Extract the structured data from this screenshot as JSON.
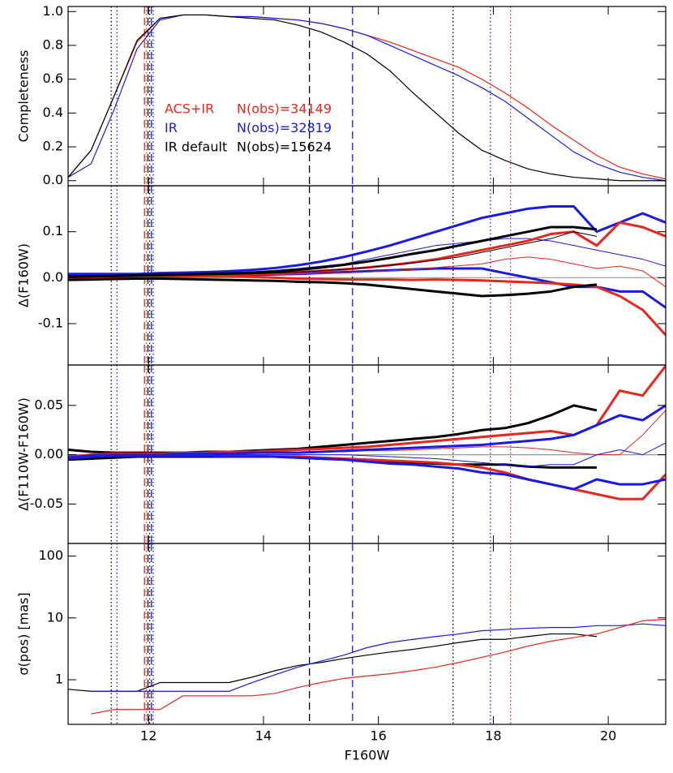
{
  "chart_data": [
    {
      "type": "line",
      "ylabel": "Completeness",
      "xlim": [
        10.6,
        21
      ],
      "xticks": [
        12,
        14,
        16,
        18,
        20
      ],
      "ylim": [
        -0.03,
        1.03
      ],
      "yticks": [
        {
          "value": 0,
          "label": "0.0"
        },
        {
          "value": 0.2,
          "label": "0.2"
        },
        {
          "value": 0.4,
          "label": "0.4"
        },
        {
          "value": 0.6,
          "label": "0.6"
        },
        {
          "value": 0.8,
          "label": "0.8"
        },
        {
          "value": 1,
          "label": "1.0"
        }
      ],
      "x": [
        10.6,
        11.0,
        11.4,
        11.8,
        12.2,
        12.6,
        13.0,
        13.4,
        13.8,
        14.2,
        14.6,
        15.0,
        15.4,
        15.8,
        16.2,
        16.6,
        17.0,
        17.4,
        17.8,
        18.2,
        18.6,
        19.0,
        19.4,
        19.8,
        20.2,
        20.6,
        21.0
      ],
      "series": [
        {
          "name": "ACS+IR",
          "note": "N(obs)=34149",
          "color": "#e8261c",
          "width": 1.2,
          "values": [
            0.02,
            0.18,
            0.5,
            0.82,
            0.96,
            0.98,
            0.98,
            0.97,
            0.97,
            0.96,
            0.95,
            0.93,
            0.9,
            0.86,
            0.82,
            0.77,
            0.72,
            0.67,
            0.6,
            0.52,
            0.43,
            0.33,
            0.24,
            0.15,
            0.08,
            0.04,
            0.01
          ]
        },
        {
          "name": "IR",
          "note": "N(obs)=32819",
          "color": "#1a1ae6",
          "width": 1.2,
          "values": [
            0.02,
            0.1,
            0.42,
            0.78,
            0.95,
            0.98,
            0.98,
            0.97,
            0.97,
            0.96,
            0.95,
            0.93,
            0.9,
            0.86,
            0.8,
            0.74,
            0.68,
            0.62,
            0.55,
            0.47,
            0.37,
            0.27,
            0.17,
            0.1,
            0.05,
            0.02,
            0.0
          ]
        },
        {
          "name": "IR default",
          "note": "N(obs)=15624",
          "color": "#000000",
          "width": 1.2,
          "values": [
            0.02,
            0.18,
            0.5,
            0.83,
            0.96,
            0.98,
            0.98,
            0.97,
            0.96,
            0.95,
            0.92,
            0.88,
            0.82,
            0.75,
            0.65,
            0.52,
            0.4,
            0.28,
            0.18,
            0.12,
            0.07,
            0.04,
            0.02,
            0.01,
            0.0,
            0.0,
            0.0
          ]
        }
      ]
    },
    {
      "type": "line",
      "ylabel": "Δ(F160W)",
      "xlim": [
        10.6,
        21
      ],
      "xticks": [
        12,
        14,
        16,
        18,
        20
      ],
      "ylim": [
        -0.19,
        0.2
      ],
      "zero_line": true,
      "yticks": [
        -0.1,
        {
          "value": 0,
          "label": "0.0"
        },
        0.1
      ],
      "x": [
        10.6,
        11.0,
        11.4,
        11.8,
        12.2,
        12.6,
        13.0,
        13.4,
        13.8,
        14.2,
        14.6,
        15.0,
        15.4,
        15.8,
        16.2,
        16.6,
        17.0,
        17.4,
        17.8,
        18.2,
        18.6,
        19.0,
        19.4,
        19.8,
        20.2,
        20.6,
        21.0
      ],
      "series": [
        {
          "color": "#1a1ae6",
          "width": 3,
          "values": [
            0.008,
            0.008,
            0.008,
            0.008,
            0.01,
            0.011,
            0.012,
            0.014,
            0.017,
            0.021,
            0.027,
            0.035,
            0.045,
            0.057,
            0.07,
            0.085,
            0.1,
            0.115,
            0.13,
            0.14,
            0.15,
            0.155,
            0.155,
            0.1,
            0.12,
            0.14,
            0.12
          ]
        },
        {
          "color": "#1a1ae6",
          "width": 3,
          "values": [
            0.005,
            0.005,
            0.005,
            0.005,
            0.005,
            0.005,
            0.005,
            0.005,
            0.006,
            0.007,
            0.008,
            0.01,
            0.012,
            0.014,
            0.016,
            0.018,
            0.02,
            0.02,
            0.02,
            0.01,
            0.0,
            -0.01,
            -0.02,
            -0.02,
            -0.03,
            -0.03,
            -0.065
          ]
        },
        {
          "color": "#1a1ae6",
          "width": 1,
          "values": [
            0.006,
            0.006,
            0.006,
            0.006,
            0.007,
            0.008,
            0.009,
            0.011,
            0.013,
            0.016,
            0.02,
            0.025,
            0.03,
            0.04,
            0.05,
            0.06,
            0.07,
            0.075,
            0.08,
            0.085,
            0.085,
            0.08,
            0.07,
            0.06,
            0.05,
            0.04,
            0.025
          ]
        },
        {
          "color": "#e8261c",
          "width": 3,
          "values": [
            0.0,
            0.002,
            0.003,
            0.004,
            0.005,
            0.006,
            0.007,
            0.008,
            0.009,
            0.01,
            0.012,
            0.015,
            0.018,
            0.022,
            0.027,
            0.033,
            0.04,
            0.05,
            0.06,
            0.07,
            0.08,
            0.095,
            0.1,
            0.07,
            0.12,
            0.11,
            0.09
          ]
        },
        {
          "color": "#e8261c",
          "width": 3,
          "values": [
            -0.002,
            0.0,
            0.002,
            0.003,
            0.003,
            0.003,
            0.003,
            0.003,
            0.002,
            0.0,
            -0.002,
            -0.003,
            -0.004,
            -0.004,
            -0.004,
            -0.005,
            -0.004,
            -0.005,
            -0.006,
            -0.008,
            -0.01,
            -0.012,
            -0.015,
            -0.02,
            -0.04,
            -0.07,
            -0.125
          ]
        },
        {
          "color": "#e8261c",
          "width": 1,
          "values": [
            0.0,
            0.002,
            0.003,
            0.004,
            0.004,
            0.005,
            0.005,
            0.006,
            0.006,
            0.007,
            0.008,
            0.009,
            0.01,
            0.012,
            0.015,
            0.018,
            0.022,
            0.026,
            0.03,
            0.04,
            0.045,
            0.04,
            0.03,
            0.02,
            0.025,
            0.015,
            -0.02
          ]
        },
        {
          "color": "#000000",
          "width": 3,
          "values": [
            0.002,
            0.003,
            0.004,
            0.005,
            0.006,
            0.007,
            0.008,
            0.009,
            0.011,
            0.013,
            0.017,
            0.022,
            0.028,
            0.035,
            0.043,
            0.052,
            0.06,
            0.07,
            0.08,
            0.09,
            0.1,
            0.11,
            0.11,
            0.105,
            null,
            null,
            null
          ]
        },
        {
          "color": "#000000",
          "width": 3,
          "values": [
            -0.005,
            -0.004,
            -0.003,
            -0.002,
            -0.002,
            -0.003,
            -0.004,
            -0.005,
            -0.006,
            -0.007,
            -0.009,
            -0.01,
            -0.012,
            -0.015,
            -0.02,
            -0.025,
            -0.03,
            -0.035,
            -0.04,
            -0.038,
            -0.035,
            -0.03,
            -0.02,
            -0.015,
            null,
            null,
            null
          ]
        },
        {
          "color": "#000000",
          "width": 1,
          "values": [
            0.0,
            0.001,
            0.002,
            0.003,
            0.004,
            0.005,
            0.006,
            0.007,
            0.008,
            0.01,
            0.012,
            0.015,
            0.018,
            0.022,
            0.027,
            0.032,
            0.038,
            0.045,
            0.055,
            0.065,
            0.075,
            0.085,
            0.1,
            0.09,
            null,
            null,
            null
          ]
        }
      ]
    },
    {
      "type": "line",
      "ylabel": "Δ(F110W-F160W)",
      "xlim": [
        10.6,
        21
      ],
      "xticks": [
        12,
        14,
        16,
        18,
        20
      ],
      "ylim": [
        -0.09,
        0.091
      ],
      "zero_line": true,
      "yticks": [
        -0.05,
        {
          "value": 0,
          "label": "0.00"
        },
        0.05
      ],
      "x": [
        10.6,
        11.0,
        11.4,
        11.8,
        12.2,
        12.6,
        13.0,
        13.4,
        13.8,
        14.2,
        14.6,
        15.0,
        15.4,
        15.8,
        16.2,
        16.6,
        17.0,
        17.4,
        17.8,
        18.2,
        18.6,
        19.0,
        19.4,
        19.8,
        20.2,
        20.6,
        21.0
      ],
      "series": [
        {
          "color": "#000000",
          "width": 3,
          "values": [
            0.005,
            0.003,
            0.002,
            0.002,
            0.002,
            0.002,
            0.003,
            0.003,
            0.004,
            0.005,
            0.006,
            0.008,
            0.01,
            0.012,
            0.014,
            0.016,
            0.018,
            0.021,
            0.025,
            0.027,
            0.032,
            0.04,
            0.05,
            0.045,
            null,
            null,
            null
          ]
        },
        {
          "color": "#000000",
          "width": 3,
          "values": [
            -0.005,
            -0.004,
            -0.003,
            -0.002,
            -0.002,
            -0.002,
            -0.002,
            -0.002,
            -0.002,
            -0.002,
            -0.003,
            -0.004,
            -0.005,
            -0.006,
            -0.007,
            -0.008,
            -0.009,
            -0.01,
            -0.01,
            -0.01,
            -0.012,
            -0.013,
            -0.013,
            -0.013,
            null,
            null,
            null
          ]
        },
        {
          "color": "#e8261c",
          "width": 3,
          "values": [
            -0.002,
            0.0,
            0.001,
            0.001,
            0.001,
            0.002,
            0.002,
            0.003,
            0.003,
            0.004,
            0.005,
            0.006,
            0.007,
            0.008,
            0.01,
            0.012,
            0.014,
            0.016,
            0.018,
            0.02,
            0.022,
            0.024,
            0.02,
            0.03,
            0.065,
            0.06,
            0.09
          ]
        },
        {
          "color": "#e8261c",
          "width": 3,
          "values": [
            -0.002,
            -0.001,
            -0.001,
            -0.001,
            -0.001,
            -0.001,
            -0.001,
            -0.001,
            -0.001,
            -0.002,
            -0.002,
            -0.003,
            -0.004,
            -0.005,
            -0.006,
            -0.007,
            -0.008,
            -0.01,
            -0.013,
            -0.018,
            -0.025,
            -0.03,
            -0.035,
            -0.04,
            -0.045,
            -0.045,
            -0.02
          ]
        },
        {
          "color": "#e8261c",
          "width": 1,
          "values": [
            -0.001,
            0.0,
            0.0,
            0.0,
            0.0,
            0.001,
            0.001,
            0.001,
            0.001,
            0.002,
            0.002,
            0.003,
            0.003,
            0.004,
            0.004,
            0.005,
            0.006,
            0.007,
            0.008,
            0.008,
            0.007,
            0.005,
            0.002,
            0.0,
            0.0,
            0.02,
            0.045
          ]
        },
        {
          "color": "#1a1ae6",
          "width": 3,
          "values": [
            -0.003,
            -0.001,
            0.0,
            0.0,
            0.0,
            0.001,
            0.001,
            0.001,
            0.002,
            0.002,
            0.002,
            0.003,
            0.004,
            0.005,
            0.006,
            0.007,
            0.008,
            0.009,
            0.01,
            0.012,
            0.014,
            0.016,
            0.02,
            0.03,
            0.04,
            0.035,
            0.05
          ]
        },
        {
          "color": "#1a1ae6",
          "width": 3,
          "values": [
            -0.004,
            -0.002,
            -0.001,
            -0.001,
            -0.001,
            -0.001,
            -0.001,
            -0.002,
            -0.002,
            -0.002,
            -0.003,
            -0.004,
            -0.005,
            -0.007,
            -0.009,
            -0.01,
            -0.012,
            -0.014,
            -0.018,
            -0.02,
            -0.025,
            -0.03,
            -0.035,
            -0.025,
            -0.03,
            -0.03,
            -0.025
          ]
        },
        {
          "color": "#1a1ae6",
          "width": 1,
          "values": [
            -0.002,
            -0.001,
            0.0,
            0.0,
            0.0,
            0.0,
            0.0,
            0.0,
            0.0,
            0.0,
            0.0,
            0.0,
            0.0,
            -0.001,
            -0.002,
            -0.003,
            -0.004,
            -0.006,
            -0.008,
            -0.01,
            -0.012,
            -0.01,
            -0.01,
            0.0,
            0.005,
            0.0,
            0.012
          ]
        }
      ]
    },
    {
      "type": "line",
      "ylabel": "σ(pos) [mas]",
      "xlabel": "F160W",
      "xlim": [
        10.6,
        21
      ],
      "xticks": [
        12,
        14,
        16,
        18,
        20
      ],
      "ylim": [
        0.19,
        160
      ],
      "log": true,
      "yticks": [
        1,
        10,
        100
      ],
      "x": [
        10.6,
        11.0,
        11.4,
        11.8,
        12.2,
        12.6,
        13.0,
        13.4,
        13.8,
        14.2,
        14.6,
        15.0,
        15.4,
        15.8,
        16.2,
        16.6,
        17.0,
        17.4,
        17.8,
        18.2,
        18.6,
        19.0,
        19.4,
        19.8,
        20.2,
        20.6,
        21.0
      ],
      "series": [
        {
          "color": "#000000",
          "width": 1.2,
          "values": [
            0.7,
            0.65,
            0.65,
            0.65,
            0.9,
            0.9,
            0.9,
            0.9,
            1.1,
            1.4,
            1.7,
            1.9,
            2.2,
            2.5,
            2.8,
            3.1,
            3.5,
            4,
            4.5,
            4.5,
            5,
            5.5,
            5.5,
            5,
            null,
            null,
            null
          ]
        },
        {
          "color": "#1a1ae6",
          "width": 1.2,
          "values": [
            null,
            0.65,
            0.65,
            0.65,
            0.65,
            0.65,
            0.65,
            0.65,
            0.9,
            1.2,
            1.6,
            2,
            2.5,
            3.3,
            4,
            4.5,
            5,
            5.5,
            6.2,
            6.5,
            6.8,
            7,
            7,
            7.5,
            7.5,
            8,
            7.5
          ]
        },
        {
          "color": "#e8261c",
          "width": 1.2,
          "values": [
            null,
            0.28,
            0.33,
            0.33,
            0.33,
            0.55,
            0.55,
            0.55,
            0.55,
            0.6,
            0.75,
            0.9,
            1.05,
            1.15,
            1.25,
            1.4,
            1.6,
            1.9,
            2.3,
            2.8,
            3.5,
            4.2,
            4.8,
            5.5,
            7,
            9,
            9.5
          ]
        }
      ]
    }
  ],
  "vlines": [
    {
      "x": 11.35,
      "color": "#000000",
      "dash": "dot"
    },
    {
      "x": 11.45,
      "color": "#1a1ae6",
      "dash": "dot"
    },
    {
      "x": 11.93,
      "color": "#e8261c",
      "dash": "dash"
    },
    {
      "x": 11.96,
      "color": "#e8261c",
      "dash": "dot"
    },
    {
      "x": 11.99,
      "color": "#000000",
      "dash": "dash"
    },
    {
      "x": 12.02,
      "color": "#000000",
      "dash": "dot"
    },
    {
      "x": 12.05,
      "color": "#1a1ae6",
      "dash": "dash"
    },
    {
      "x": 12.08,
      "color": "#1a1ae6",
      "dash": "dot"
    },
    {
      "x": 14.8,
      "color": "#000000",
      "dash": "dash"
    },
    {
      "x": 15.55,
      "color": "#1a1ae6",
      "dash": "dash"
    },
    {
      "x": 17.3,
      "color": "#000000",
      "dash": "dot"
    },
    {
      "x": 17.95,
      "color": "#1a1ae6",
      "dash": "dot"
    },
    {
      "x": 18.3,
      "color": "#e8261c",
      "dash": "dot"
    }
  ]
}
